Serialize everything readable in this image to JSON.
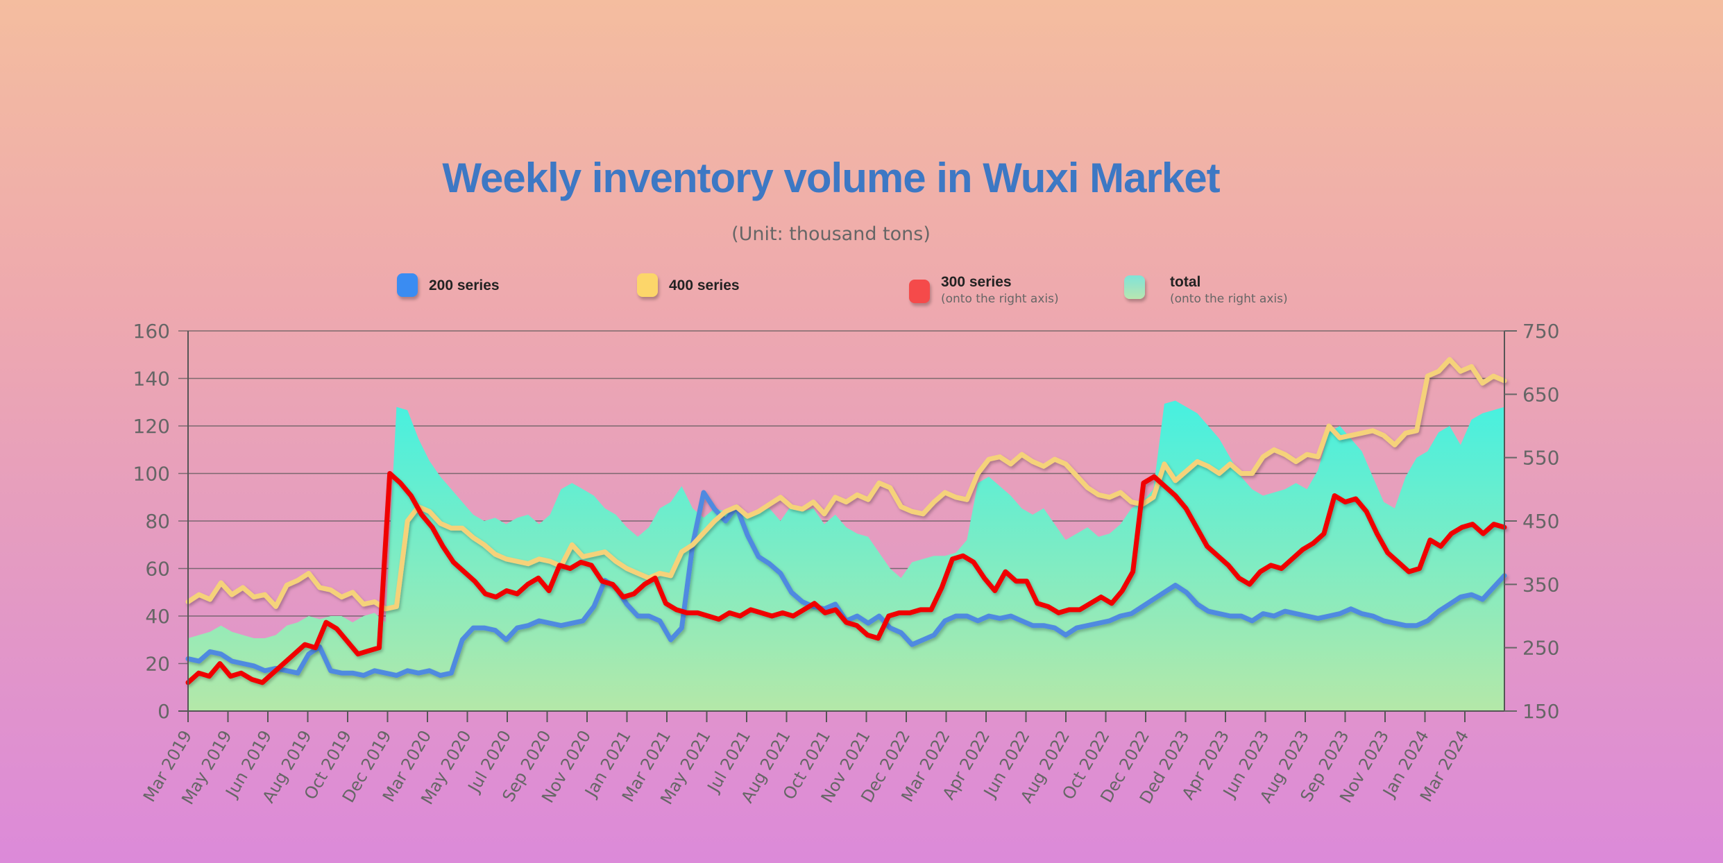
{
  "chart_data": {
    "type": "line",
    "title": "Weekly inventory volume in Wuxi Market",
    "subtitle": "(Unit: thousand tons)",
    "xlabel": "",
    "ylabel": "",
    "y_left": {
      "min": 0,
      "max": 160,
      "ticks": [
        "0",
        "20",
        "40",
        "60",
        "80",
        "100",
        "120",
        "140",
        "160"
      ]
    },
    "y_right": {
      "min": 150,
      "max": 750,
      "ticks": [
        "150",
        "250",
        "350",
        "450",
        "550",
        "650",
        "750"
      ]
    },
    "grid": true,
    "legend_position": "top",
    "x_tick_labels": [
      "Mar 2019",
      "May 2019",
      "Jun 2019",
      "Aug 2019",
      "Oct 2019",
      "Dec 2019",
      "Mar 2020",
      "May 2020",
      "Jul 2020",
      "Sep 2020",
      "Nov 2020",
      "Jan 2021",
      "Mar 2021",
      "May 2021",
      "Jul 2021",
      "Aug 2021",
      "Oct 2021",
      "Nov 2021",
      "Dec 2022",
      "Mar 2022",
      "Apr 2022",
      "Jun 2022",
      "Aug 2022",
      "Oct 2022",
      "Dec 2022",
      "Ded 2023",
      "Apr 2023",
      "Jun 2023",
      "Aug 2023",
      "Sep 2023",
      "Nov 2023",
      "Jan 2024",
      "Mar 2024"
    ],
    "series": [
      {
        "name": "200 series",
        "axis": "left",
        "kind": "line",
        "color": "#4f8ae0",
        "values": [
          22,
          21,
          25,
          24,
          21,
          20,
          19,
          17,
          18,
          17,
          16,
          24,
          27,
          17,
          16,
          16,
          15,
          17,
          16,
          15,
          17,
          16,
          17,
          15,
          16,
          30,
          35,
          35,
          34,
          30,
          35,
          36,
          38,
          37,
          36,
          37,
          38,
          44,
          55,
          52,
          45,
          40,
          40,
          38,
          30,
          35,
          70,
          92,
          85,
          80,
          86,
          74,
          65,
          62,
          58,
          50,
          46,
          44,
          43,
          45,
          38,
          40,
          37,
          40,
          35,
          33,
          28,
          30,
          32,
          38,
          40,
          40,
          38,
          40,
          39,
          40,
          38,
          36,
          36,
          35,
          32,
          35,
          36,
          37,
          38,
          40,
          41,
          44,
          47,
          50,
          53,
          50,
          45,
          42,
          41,
          40,
          40,
          38,
          41,
          40,
          42,
          41,
          40,
          39,
          40,
          41,
          43,
          41,
          40,
          38,
          37,
          36,
          36,
          38,
          42,
          45,
          48,
          49,
          47,
          52,
          57
        ]
      },
      {
        "name": "400 series",
        "axis": "left",
        "kind": "line",
        "color": "#f5d27a",
        "values": [
          46,
          49,
          47,
          54,
          49,
          52,
          48,
          49,
          44,
          53,
          55,
          58,
          52,
          51,
          48,
          50,
          45,
          46,
          43,
          44,
          80,
          86,
          84,
          79,
          77,
          77,
          73,
          70,
          66,
          64,
          63,
          62,
          64,
          63,
          61,
          70,
          65,
          66,
          67,
          63,
          60,
          58,
          56,
          58,
          57,
          67,
          70,
          75,
          80,
          84,
          86,
          82,
          84,
          87,
          90,
          86,
          85,
          88,
          83,
          90,
          88,
          91,
          89,
          96,
          94,
          86,
          84,
          83,
          88,
          92,
          90,
          89,
          100,
          106,
          107,
          104,
          108,
          105,
          103,
          106,
          104,
          99,
          94,
          91,
          90,
          92,
          88,
          87,
          90,
          104,
          97,
          101,
          105,
          103,
          100,
          104,
          100,
          100,
          107,
          110,
          108,
          105,
          108,
          107,
          120,
          115,
          116,
          117,
          118,
          116,
          112,
          117,
          118,
          141,
          143,
          148,
          143,
          145,
          138,
          141,
          139
        ]
      },
      {
        "name": "300 series",
        "axis": "right",
        "kind": "line",
        "color": "#f00000",
        "values": [
          195,
          210,
          205,
          225,
          205,
          210,
          200,
          195,
          210,
          225,
          240,
          255,
          250,
          290,
          280,
          260,
          240,
          245,
          250,
          525,
          510,
          490,
          460,
          440,
          410,
          385,
          370,
          355,
          335,
          330,
          340,
          335,
          350,
          360,
          340,
          380,
          375,
          385,
          380,
          355,
          350,
          330,
          335,
          350,
          360,
          320,
          310,
          305,
          305,
          300,
          295,
          305,
          300,
          310,
          305,
          300,
          305,
          300,
          310,
          320,
          305,
          310,
          290,
          285,
          270,
          265,
          300,
          305,
          305,
          310,
          310,
          345,
          390,
          395,
          385,
          360,
          340,
          370,
          355,
          355,
          320,
          315,
          305,
          310,
          310,
          320,
          330,
          320,
          340,
          370,
          510,
          520,
          505,
          490,
          470,
          440,
          410,
          395,
          380,
          360,
          350,
          370,
          380,
          375,
          390,
          405,
          415,
          430,
          490,
          480,
          485,
          465,
          430,
          400,
          385,
          370,
          375,
          420,
          410,
          430,
          440,
          445,
          430,
          445,
          440
        ]
      },
      {
        "name": "total",
        "axis": "right",
        "kind": "area",
        "color_top": "#46f0e0",
        "color_bottom": "#b4e8a8",
        "values": [
          265,
          270,
          275,
          285,
          275,
          270,
          265,
          265,
          270,
          285,
          290,
          300,
          295,
          300,
          300,
          290,
          300,
          305,
          290,
          630,
          625,
          580,
          545,
          520,
          500,
          480,
          460,
          450,
          455,
          445,
          455,
          460,
          445,
          460,
          500,
          510,
          500,
          490,
          470,
          460,
          440,
          425,
          440,
          470,
          480,
          505,
          470,
          455,
          470,
          465,
          475,
          460,
          465,
          470,
          450,
          475,
          465,
          470,
          445,
          460,
          440,
          430,
          425,
          400,
          375,
          360,
          385,
          390,
          395,
          395,
          400,
          420,
          510,
          520,
          505,
          490,
          470,
          460,
          470,
          445,
          420,
          430,
          440,
          425,
          430,
          445,
          470,
          480,
          500,
          635,
          640,
          630,
          620,
          600,
          580,
          550,
          520,
          500,
          490,
          495,
          500,
          510,
          500,
          530,
          590,
          600,
          580,
          560,
          520,
          480,
          470,
          520,
          550,
          560,
          590,
          600,
          570,
          610,
          620,
          625,
          630
        ]
      }
    ]
  },
  "legend": [
    {
      "label": "200 series",
      "note": ""
    },
    {
      "label": "400 series",
      "note": ""
    },
    {
      "label": "300 series",
      "note": "(onto the right axis)"
    },
    {
      "label": "total",
      "note": "(onto the right axis)"
    }
  ]
}
